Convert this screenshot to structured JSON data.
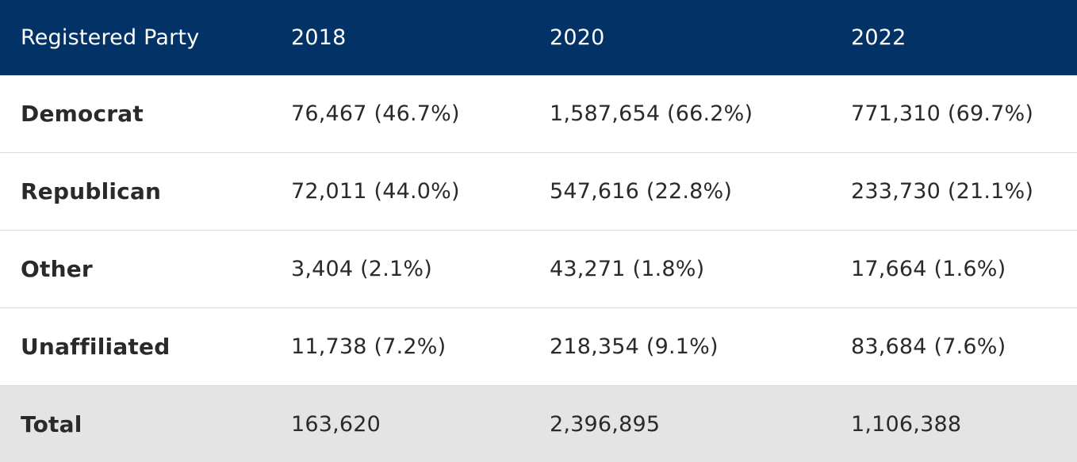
{
  "table": {
    "headers": [
      "Registered Party",
      "2018",
      "2020",
      "2022"
    ],
    "rows": [
      {
        "party": "Democrat",
        "values": [
          "76,467 (46.7%)",
          "1,587,654 (66.2%)",
          "771,310 (69.7%)"
        ]
      },
      {
        "party": "Republican",
        "values": [
          "72,011 (44.0%)",
          "547,616 (22.8%)",
          "233,730 (21.1%)"
        ]
      },
      {
        "party": "Other",
        "values": [
          "3,404 (2.1%)",
          "43,271 (1.8%)",
          "17,664 (1.6%)"
        ]
      },
      {
        "party": "Unaffiliated",
        "values": [
          "11,738 (7.2%)",
          "218,354 (9.1%)",
          "83,684 (7.6%)"
        ]
      }
    ],
    "total": {
      "party": "Total",
      "values": [
        "163,620",
        "2,396,895",
        "1,106,388"
      ]
    }
  },
  "colors": {
    "header_bg": "#033366",
    "header_text": "#ffffff",
    "total_bg": "#e4e4e4",
    "row_divider": "#dcdcdc"
  }
}
